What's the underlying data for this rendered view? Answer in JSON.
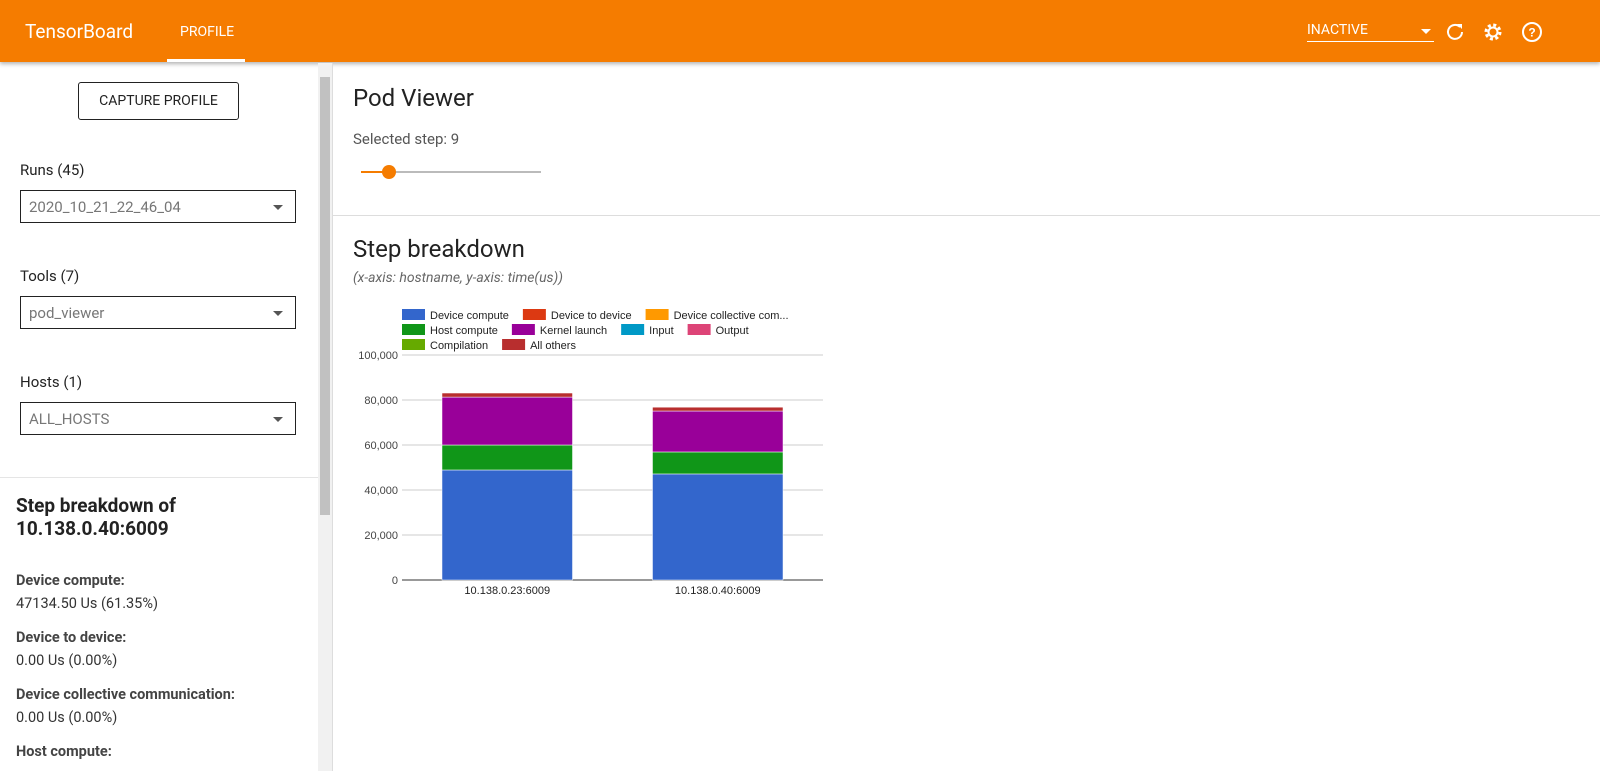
{
  "header": {
    "brand": "TensorBoard",
    "tab": "PROFILE",
    "status": "INACTIVE"
  },
  "sidebar": {
    "capture": "CAPTURE PROFILE",
    "runs_label": "Runs (45)",
    "runs_value": "2020_10_21_22_46_04",
    "tools_label": "Tools (7)",
    "tools_value": "pod_viewer",
    "hosts_label": "Hosts (1)",
    "hosts_value": "ALL_HOSTS",
    "breakdown_title": "Step breakdown of 10.138.0.40:6009",
    "items": [
      {
        "label": "Device compute:",
        "value": "47134.50 Us (61.35%)"
      },
      {
        "label": "Device to device:",
        "value": "0.00 Us (0.00%)"
      },
      {
        "label": "Device collective communication:",
        "value": "0.00 Us (0.00%)"
      },
      {
        "label": "Host compute:"
      }
    ]
  },
  "main": {
    "title": "Pod Viewer",
    "selected_step": "Selected step: 9",
    "section": "Step breakdown",
    "note": "(x-axis: hostname, y-axis: time(us))"
  },
  "chart_data": {
    "type": "bar",
    "stacked": true,
    "categories": [
      "10.138.0.23:6009",
      "10.138.0.40:6009"
    ],
    "series": [
      {
        "name": "Device compute",
        "color": "#3366cc",
        "values": [
          48900,
          47134.5
        ]
      },
      {
        "name": "Device to device",
        "color": "#dc3912",
        "values": [
          0,
          0
        ]
      },
      {
        "name": "Device collective com...",
        "color": "#ff9900",
        "values": [
          0,
          0
        ]
      },
      {
        "name": "Host compute",
        "color": "#109618",
        "values": [
          11100,
          9770
        ]
      },
      {
        "name": "Kernel launch",
        "color": "#990099",
        "values": [
          21300,
          18200
        ]
      },
      {
        "name": "Input",
        "color": "#0099c6",
        "values": [
          0,
          0
        ]
      },
      {
        "name": "Output",
        "color": "#dd4477",
        "values": [
          0,
          0
        ]
      },
      {
        "name": "Compilation",
        "color": "#66aa00",
        "values": [
          0,
          0
        ]
      },
      {
        "name": "All others",
        "color": "#b82e2e",
        "values": [
          1800,
          1700
        ]
      }
    ],
    "ylim": [
      0,
      100000
    ],
    "yticks": [
      0,
      {
        "value": 20000,
        "label": "20,000"
      },
      {
        "value": 40000,
        "label": "40,000"
      },
      {
        "value": 60000,
        "label": "60,000"
      },
      {
        "value": 80000,
        "label": "80,000"
      },
      {
        "value": 100000,
        "label": "100,000"
      }
    ],
    "grid": true,
    "legend": "top"
  }
}
